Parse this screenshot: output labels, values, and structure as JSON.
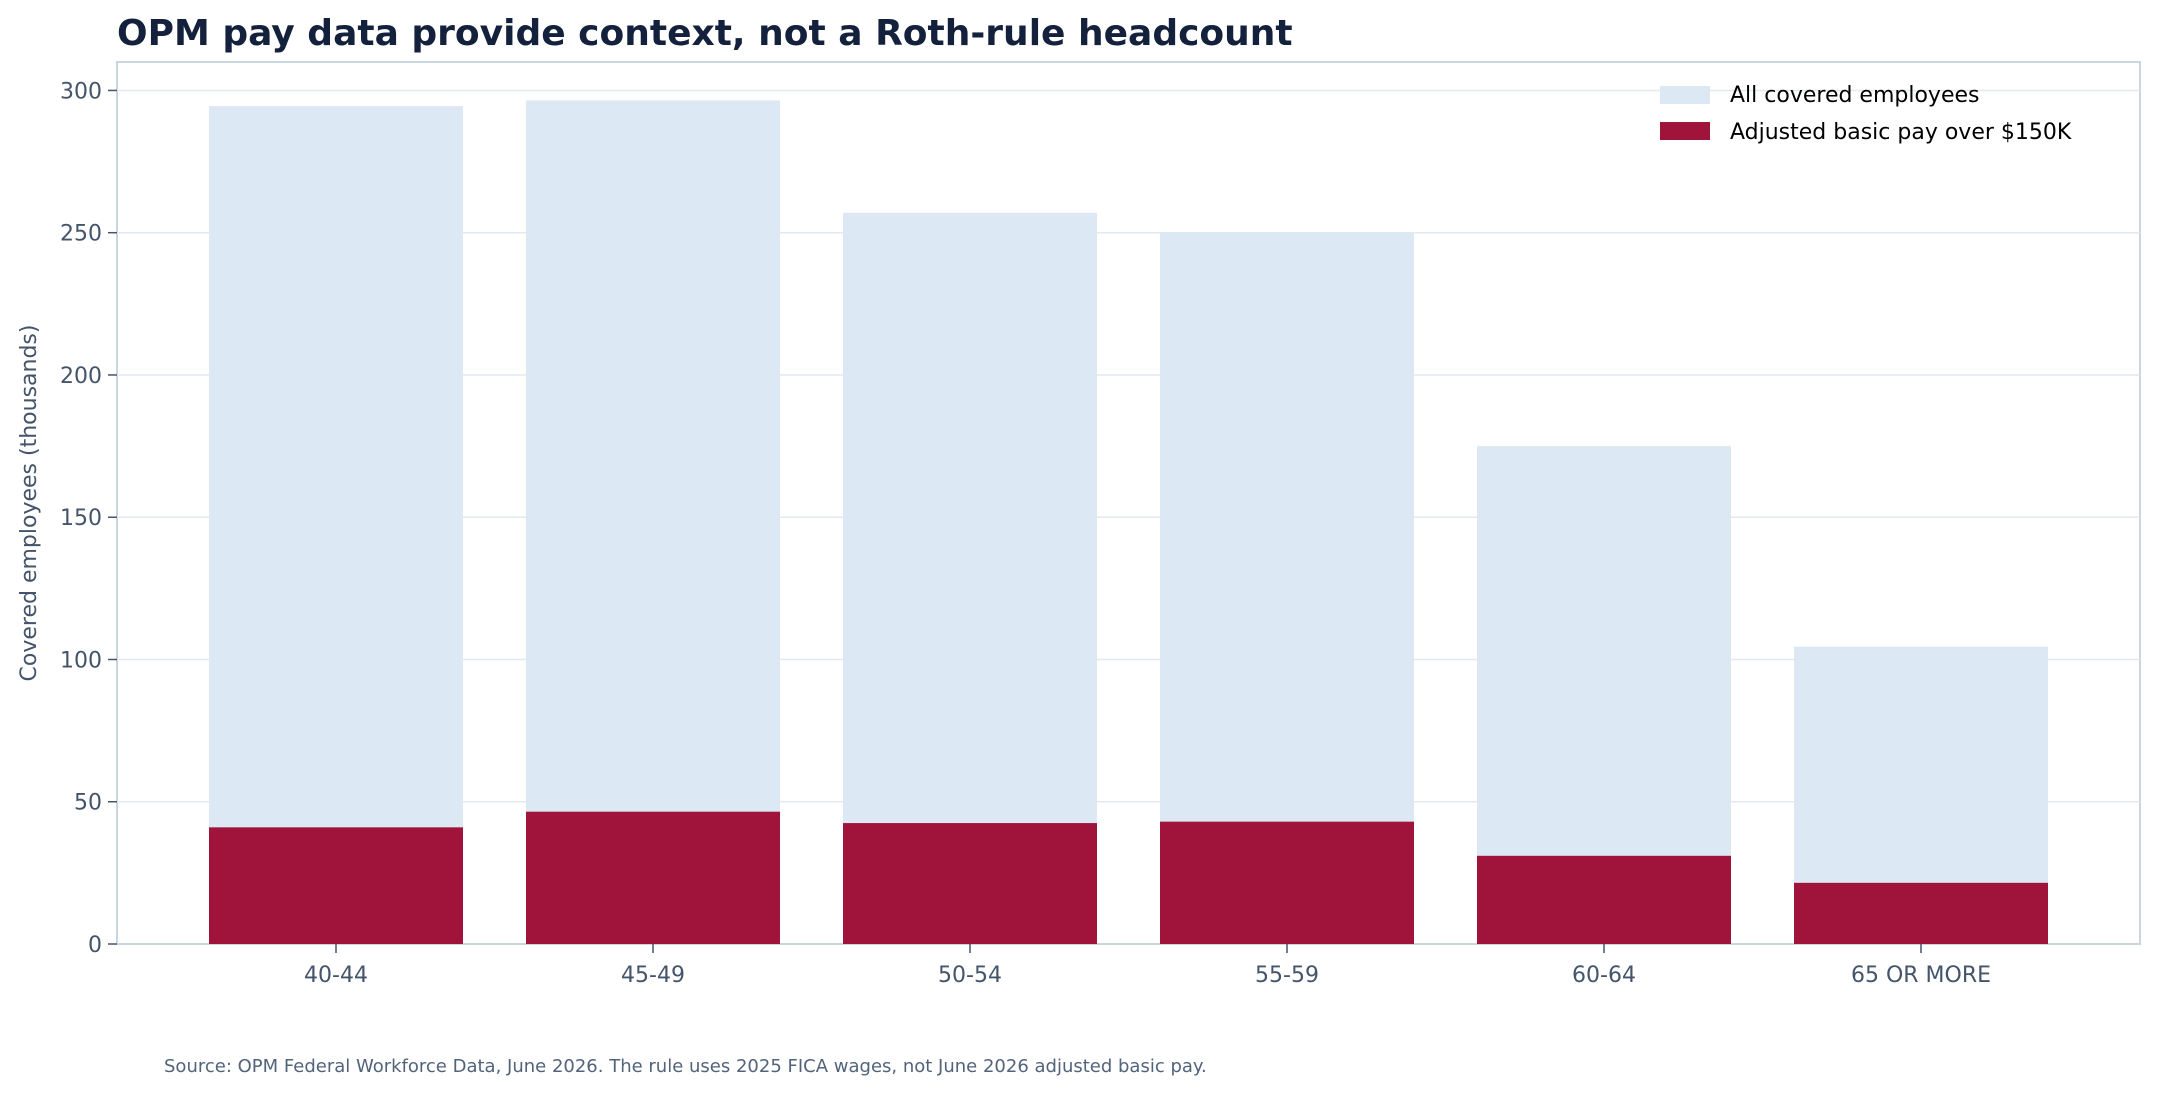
{
  "chart_data": {
    "type": "bar",
    "title": "OPM pay data provide context, not a Roth-rule headcount",
    "xlabel": "",
    "ylabel": "Covered employees (thousands)",
    "ylim": [
      0,
      310
    ],
    "yticks": [
      0,
      50,
      100,
      150,
      200,
      250,
      300
    ],
    "categories": [
      "40-44",
      "45-49",
      "50-54",
      "55-59",
      "60-64",
      "65 OR MORE"
    ],
    "series": [
      {
        "name": "All covered employees",
        "color": "#dce8f3",
        "values": [
          294.5,
          296.5,
          257,
          250,
          175,
          104.5
        ]
      },
      {
        "name": "Adjusted basic pay over $150K",
        "color": "#a0133b",
        "values": [
          41,
          46.5,
          42.5,
          43,
          31,
          21.5
        ]
      }
    ],
    "grid": true,
    "legend_position": "top-right",
    "source_note": "Source: OPM Federal Workforce Data, June 2026. The rule uses 2025 FICA wages, not June 2026 adjusted basic pay."
  }
}
